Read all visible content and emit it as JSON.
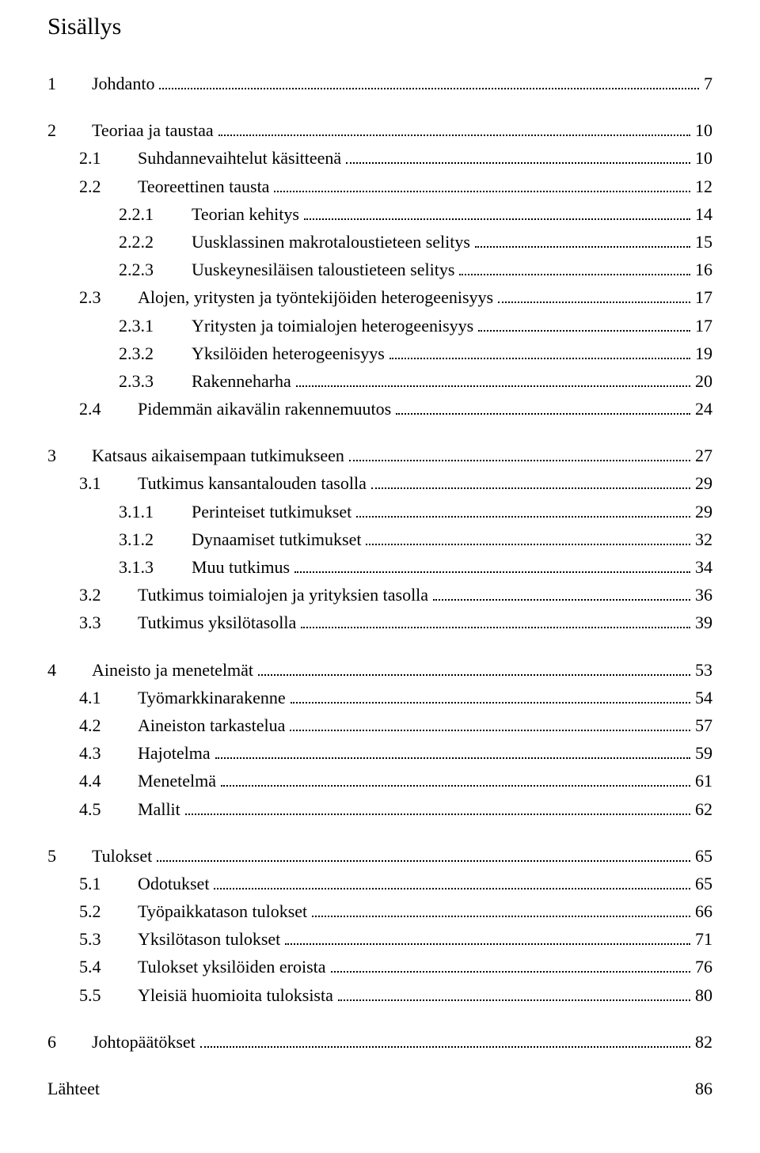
{
  "title": "Sisällys",
  "sources_label": "Lähteet",
  "sources_page": "86",
  "toc": [
    {
      "num": "1",
      "text": "Johdanto",
      "page": "7",
      "level": 1,
      "block_start": true
    },
    {
      "num": "2",
      "text": "Teoriaa ja taustaa",
      "page": "10",
      "level": 1,
      "block_start": true
    },
    {
      "num": "2.1",
      "text": "Suhdannevaihtelut käsitteenä",
      "page": "10",
      "level": 2
    },
    {
      "num": "2.2",
      "text": "Teoreettinen tausta",
      "page": "12",
      "level": 2
    },
    {
      "num": "2.2.1",
      "text": "Teorian kehitys",
      "page": "14",
      "level": 3
    },
    {
      "num": "2.2.2",
      "text": "Uusklassinen makrotaloustieteen selitys",
      "page": "15",
      "level": 3
    },
    {
      "num": "2.2.3",
      "text": "Uuskeynesiläisen taloustieteen selitys",
      "page": "16",
      "level": 3
    },
    {
      "num": "2.3",
      "text": "Alojen, yritysten ja työntekijöiden heterogeenisyys",
      "page": "17",
      "level": 2
    },
    {
      "num": "2.3.1",
      "text": "Yritysten ja toimialojen heterogeenisyys",
      "page": "17",
      "level": 3
    },
    {
      "num": "2.3.2",
      "text": "Yksilöiden heterogeenisyys",
      "page": "19",
      "level": 3
    },
    {
      "num": "2.3.3",
      "text": "Rakenneharha",
      "page": "20",
      "level": 3
    },
    {
      "num": "2.4",
      "text": "Pidemmän aikavälin rakennemuutos",
      "page": "24",
      "level": 2
    },
    {
      "num": "3",
      "text": "Katsaus aikaisempaan tutkimukseen",
      "page": "27",
      "level": 1,
      "block_start": true
    },
    {
      "num": "3.1",
      "text": "Tutkimus kansantalouden tasolla",
      "page": "29",
      "level": 2
    },
    {
      "num": "3.1.1",
      "text": "Perinteiset tutkimukset",
      "page": "29",
      "level": 3
    },
    {
      "num": "3.1.2",
      "text": "Dynaamiset tutkimukset",
      "page": "32",
      "level": 3
    },
    {
      "num": "3.1.3",
      "text": "Muu tutkimus",
      "page": "34",
      "level": 3
    },
    {
      "num": "3.2",
      "text": "Tutkimus toimialojen ja yrityksien tasolla",
      "page": "36",
      "level": 2
    },
    {
      "num": "3.3",
      "text": "Tutkimus yksilötasolla",
      "page": "39",
      "level": 2
    },
    {
      "num": "4",
      "text": "Aineisto ja menetelmät",
      "page": "53",
      "level": 1,
      "block_start": true
    },
    {
      "num": "4.1",
      "text": "Työmarkkinarakenne",
      "page": "54",
      "level": 2
    },
    {
      "num": "4.2",
      "text": "Aineiston tarkastelua",
      "page": "57",
      "level": 2
    },
    {
      "num": "4.3",
      "text": "Hajotelma",
      "page": "59",
      "level": 2
    },
    {
      "num": "4.4",
      "text": "Menetelmä",
      "page": "61",
      "level": 2
    },
    {
      "num": "4.5",
      "text": "Mallit",
      "page": "62",
      "level": 2
    },
    {
      "num": "5",
      "text": "Tulokset",
      "page": "65",
      "level": 1,
      "block_start": true
    },
    {
      "num": "5.1",
      "text": "Odotukset",
      "page": "65",
      "level": 2
    },
    {
      "num": "5.2",
      "text": "Työpaikkatason tulokset",
      "page": "66",
      "level": 2
    },
    {
      "num": "5.3",
      "text": "Yksilötason tulokset",
      "page": "71",
      "level": 2
    },
    {
      "num": "5.4",
      "text": "Tulokset yksilöiden eroista",
      "page": "76",
      "level": 2
    },
    {
      "num": "5.5",
      "text": "Yleisiä huomioita tuloksista",
      "page": "80",
      "level": 2
    },
    {
      "num": "6",
      "text": "Johtopäätökset",
      "page": "82",
      "level": 1,
      "block_start": true
    }
  ]
}
